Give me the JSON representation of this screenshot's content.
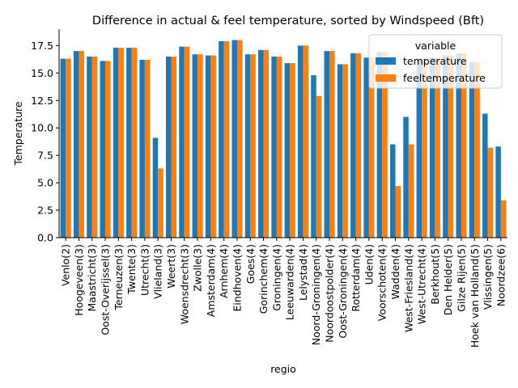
{
  "chart_data": {
    "type": "bar",
    "title": "Difference in actual & feel temperature, sorted by Windspeed (Bft)",
    "xlabel": "regio",
    "ylabel": "Temperature",
    "ylim": [
      0,
      19
    ],
    "yticks": [
      "0.0",
      "2.5",
      "5.0",
      "7.5",
      "10.0",
      "12.5",
      "15.0",
      "17.5"
    ],
    "grid": false,
    "legend": {
      "title": "variable",
      "position": "top-right"
    },
    "categories": [
      "Venlo(2)",
      "Hoogeveen(3)",
      "Maastricht(3)",
      "Oost-Overijssel(3)",
      "Terneuzen(3)",
      "Twente(3)",
      "Utrecht(3)",
      "Vlieland(3)",
      "Weert(3)",
      "Woensdrecht(3)",
      "Zwolle(3)",
      "Amsterdam(4)",
      "Arnhem(4)",
      "Eindhoven(4)",
      "Goes(4)",
      "Gorinchem(4)",
      "Groningen(4)",
      "Leeuwarden(4)",
      "Lelystad(4)",
      "Noord-Groningen(4)",
      "Noordoostpolder(4)",
      "Oost-Groningen(4)",
      "Rotterdam(4)",
      "Uden(4)",
      "Voorschoten(4)",
      "Wadden(4)",
      "West-Friesland(4)",
      "West-Utrecht(4)",
      "Berkhout(5)",
      "Den Helder(5)",
      "Gilze Rijen(5)",
      "Hoek van Holland(5)",
      "Vlissingen(5)",
      "Noordzee(6)"
    ],
    "series": [
      {
        "name": "temperature",
        "color": "#1f77b4",
        "values": [
          16.3,
          17.0,
          16.5,
          16.1,
          17.3,
          17.3,
          16.2,
          9.1,
          16.5,
          17.4,
          16.7,
          16.6,
          17.9,
          18.0,
          16.7,
          17.1,
          16.5,
          15.9,
          17.5,
          14.8,
          17.0,
          15.8,
          16.8,
          16.4,
          16.9,
          8.5,
          11.0,
          16.3,
          16.4,
          16.6,
          16.8,
          16.0,
          11.3,
          8.3
        ]
      },
      {
        "name": "feeltemperature",
        "color": "#ff7f0e",
        "values": [
          16.3,
          17.0,
          16.5,
          16.1,
          17.3,
          17.3,
          16.2,
          6.3,
          16.5,
          17.4,
          16.7,
          16.6,
          17.9,
          18.0,
          16.7,
          17.1,
          16.5,
          15.9,
          17.5,
          12.9,
          17.0,
          15.8,
          16.8,
          16.4,
          16.9,
          4.7,
          8.5,
          16.3,
          16.4,
          16.6,
          16.8,
          16.0,
          8.2,
          3.4
        ]
      }
    ]
  }
}
